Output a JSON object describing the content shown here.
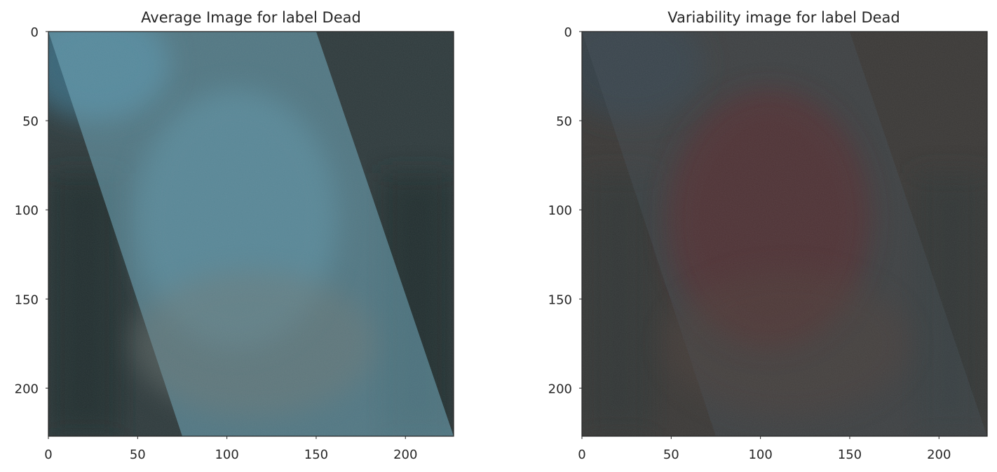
{
  "chart_data": [
    {
      "type": "image",
      "title": "Average Image for label Dead",
      "xlim": [
        0,
        227
      ],
      "ylim": [
        227,
        0
      ],
      "xticks": [
        0,
        50,
        100,
        150,
        200
      ],
      "yticks": [
        0,
        50,
        100,
        150,
        200
      ],
      "grid": false,
      "palette": {
        "base": "#2e3a3c",
        "edge_tint": "#1e2a2a",
        "highlight": "#5f95a8",
        "stripe": "#6fa9be",
        "mid": "#6e7874",
        "corner": "#3a6f86"
      }
    },
    {
      "type": "image",
      "title": "Variability image for label Dead",
      "xlim": [
        0,
        227
      ],
      "ylim": [
        227,
        0
      ],
      "xticks": [
        0,
        50,
        100,
        150,
        200
      ],
      "yticks": [
        0,
        50,
        100,
        150,
        200
      ],
      "grid": false,
      "palette": {
        "base": "#3a3836",
        "edge_tint": "#2f3534",
        "highlight": "#5a2a2e",
        "stripe": "#44505a",
        "mid": "#4d3f3a",
        "corner": "#33414a"
      }
    }
  ]
}
